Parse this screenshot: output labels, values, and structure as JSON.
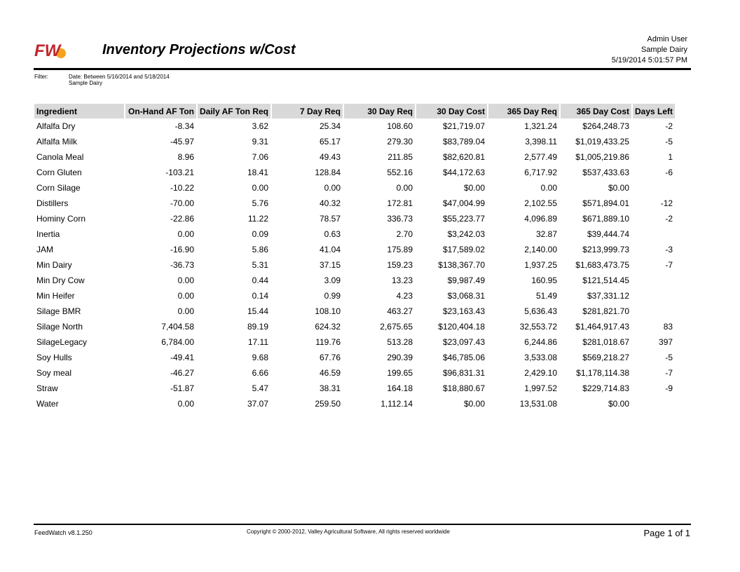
{
  "header": {
    "title": "Inventory Projections w/Cost",
    "user": "Admin User",
    "dairy": "Sample Dairy",
    "timestamp": "5/19/2014 5:01:57 PM",
    "logo_text": "FW"
  },
  "filter": {
    "label": "Filter:",
    "date_line": "Date: Between 5/16/2014 and 5/18/2014",
    "dairy_line": "Sample Dairy"
  },
  "table": {
    "columns": [
      "Ingredient",
      "On-Hand AF Ton",
      "Daily AF Ton Req",
      "7 Day Req",
      "30 Day Req",
      "30 Day Cost",
      "365 Day Req",
      "365 Day Cost",
      "Days Left"
    ],
    "rows": [
      [
        "Alfalfa Dry",
        "-8.34",
        "3.62",
        "25.34",
        "108.60",
        "$21,719.07",
        "1,321.24",
        "$264,248.73",
        "-2"
      ],
      [
        "Alfalfa Milk",
        "-45.97",
        "9.31",
        "65.17",
        "279.30",
        "$83,789.04",
        "3,398.11",
        "$1,019,433.25",
        "-5"
      ],
      [
        "Canola Meal",
        "8.96",
        "7.06",
        "49.43",
        "211.85",
        "$82,620.81",
        "2,577.49",
        "$1,005,219.86",
        "1"
      ],
      [
        "Corn Gluten",
        "-103.21",
        "18.41",
        "128.84",
        "552.16",
        "$44,172.63",
        "6,717.92",
        "$537,433.63",
        "-6"
      ],
      [
        "Corn Silage",
        "-10.22",
        "0.00",
        "0.00",
        "0.00",
        "$0.00",
        "0.00",
        "$0.00",
        ""
      ],
      [
        "Distillers",
        "-70.00",
        "5.76",
        "40.32",
        "172.81",
        "$47,004.99",
        "2,102.55",
        "$571,894.01",
        "-12"
      ],
      [
        "Hominy Corn",
        "-22.86",
        "11.22",
        "78.57",
        "336.73",
        "$55,223.77",
        "4,096.89",
        "$671,889.10",
        "-2"
      ],
      [
        "Inertia",
        "0.00",
        "0.09",
        "0.63",
        "2.70",
        "$3,242.03",
        "32.87",
        "$39,444.74",
        ""
      ],
      [
        "JAM",
        "-16.90",
        "5.86",
        "41.04",
        "175.89",
        "$17,589.02",
        "2,140.00",
        "$213,999.73",
        "-3"
      ],
      [
        "Min Dairy",
        "-36.73",
        "5.31",
        "37.15",
        "159.23",
        "$138,367.70",
        "1,937.25",
        "$1,683,473.75",
        "-7"
      ],
      [
        "Min Dry Cow",
        "0.00",
        "0.44",
        "3.09",
        "13.23",
        "$9,987.49",
        "160.95",
        "$121,514.45",
        ""
      ],
      [
        "Min Heifer",
        "0.00",
        "0.14",
        "0.99",
        "4.23",
        "$3,068.31",
        "51.49",
        "$37,331.12",
        ""
      ],
      [
        "Silage BMR",
        "0.00",
        "15.44",
        "108.10",
        "463.27",
        "$23,163.43",
        "5,636.43",
        "$281,821.70",
        ""
      ],
      [
        "Silage North",
        "7,404.58",
        "89.19",
        "624.32",
        "2,675.65",
        "$120,404.18",
        "32,553.72",
        "$1,464,917.43",
        "83"
      ],
      [
        "SilageLegacy",
        "6,784.00",
        "17.11",
        "119.76",
        "513.28",
        "$23,097.43",
        "6,244.86",
        "$281,018.67",
        "397"
      ],
      [
        "Soy Hulls",
        "-49.41",
        "9.68",
        "67.76",
        "290.39",
        "$46,785.06",
        "3,533.08",
        "$569,218.27",
        "-5"
      ],
      [
        "Soy meal",
        "-46.27",
        "6.66",
        "46.59",
        "199.65",
        "$96,831.31",
        "2,429.10",
        "$1,178,114.38",
        "-7"
      ],
      [
        "Straw",
        "-51.87",
        "5.47",
        "38.31",
        "164.18",
        "$18,880.67",
        "1,997.52",
        "$229,714.83",
        "-9"
      ],
      [
        "Water",
        "0.00",
        "37.07",
        "259.50",
        "1,112.14",
        "$0.00",
        "13,531.08",
        "$0.00",
        ""
      ]
    ]
  },
  "footer": {
    "version": "FeedWatch v8.1.250",
    "copyright": "Copyright © 2000-2012, Valley Agricultural Software, All rights reserved worldwide",
    "page": "Page 1 of 1"
  },
  "colors": {
    "logo_red": "#c0272d",
    "logo_orange": "#f7a21b",
    "header_bg": "#d9d9d9"
  }
}
